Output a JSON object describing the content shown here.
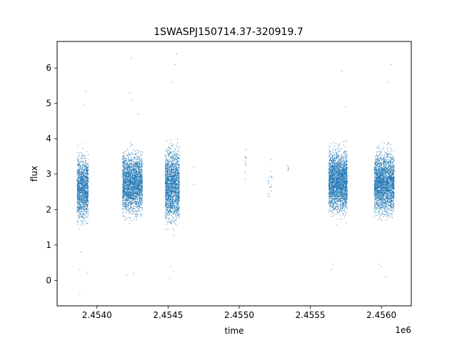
{
  "chart_data": {
    "type": "scatter",
    "title": "1SWASPJ150714.37-320919.7",
    "xlabel": "time",
    "ylabel": "flux",
    "x_offset_label": "1e6",
    "xlim": [
      2.45372,
      2.45621
    ],
    "ylim": [
      -0.72,
      6.75
    ],
    "x_ticks": [
      2.454,
      2.4545,
      2.455,
      2.4555,
      2.456
    ],
    "x_tick_labels": [
      "2.4540",
      "2.4545",
      "2.4550",
      "2.4555",
      "2.4560"
    ],
    "y_ticks": [
      0,
      1,
      2,
      3,
      4,
      5,
      6
    ],
    "y_tick_labels": [
      "0",
      "1",
      "2",
      "3",
      "4",
      "5",
      "6"
    ],
    "grid": false,
    "legend": false,
    "marker_color": "#1f77b4",
    "series": [
      {
        "segments": [
          {
            "x_start": 2.45386,
            "x_end": 2.45394,
            "flux_center": 2.6,
            "flux_spread": 0.75,
            "points": 1400
          },
          {
            "x_start": 2.45418,
            "x_end": 2.45432,
            "flux_center": 2.75,
            "flux_spread": 0.72,
            "points": 2400
          },
          {
            "x_start": 2.45448,
            "x_end": 2.45458,
            "flux_center": 2.7,
            "flux_spread": 0.85,
            "points": 1900
          },
          {
            "x_start": 2.45504,
            "x_end": 2.45505,
            "flux_center": 3.3,
            "flux_spread": 0.5,
            "points": 12
          },
          {
            "x_start": 2.4552,
            "x_end": 2.45524,
            "flux_center": 2.8,
            "flux_spread": 0.5,
            "points": 20
          },
          {
            "x_start": 2.45534,
            "x_end": 2.45535,
            "flux_center": 3.1,
            "flux_spread": 0.15,
            "points": 6
          },
          {
            "x_start": 2.45563,
            "x_end": 2.45576,
            "flux_center": 2.8,
            "flux_spread": 0.7,
            "points": 2600
          },
          {
            "x_start": 2.45595,
            "x_end": 2.45609,
            "flux_center": 2.75,
            "flux_spread": 0.72,
            "points": 2500
          }
        ],
        "outliers": [
          [
            2.45392,
            5.35
          ],
          [
            2.45391,
            4.95
          ],
          [
            2.45388,
            0.3
          ],
          [
            2.45388,
            -0.38
          ],
          [
            2.45393,
            0.2
          ],
          [
            2.45389,
            0.8
          ],
          [
            2.45424,
            6.28
          ],
          [
            2.45423,
            5.3
          ],
          [
            2.45425,
            5.1
          ],
          [
            2.45421,
            0.15
          ],
          [
            2.45426,
            0.2
          ],
          [
            2.45429,
            4.7
          ],
          [
            2.45456,
            6.4
          ],
          [
            2.45455,
            6.1
          ],
          [
            2.45453,
            5.6
          ],
          [
            2.45451,
            0.05
          ],
          [
            2.45452,
            0.4
          ],
          [
            2.45454,
            0.25
          ],
          [
            2.45468,
            3.2
          ],
          [
            2.45468,
            2.7
          ],
          [
            2.45572,
            5.9
          ],
          [
            2.45575,
            4.9
          ],
          [
            2.45565,
            0.3
          ],
          [
            2.45566,
            0.45
          ],
          [
            2.45607,
            6.1
          ],
          [
            2.45605,
            5.6
          ],
          [
            2.45603,
            0.1
          ],
          [
            2.456,
            0.4
          ],
          [
            2.45598,
            0.45
          ]
        ]
      }
    ]
  }
}
